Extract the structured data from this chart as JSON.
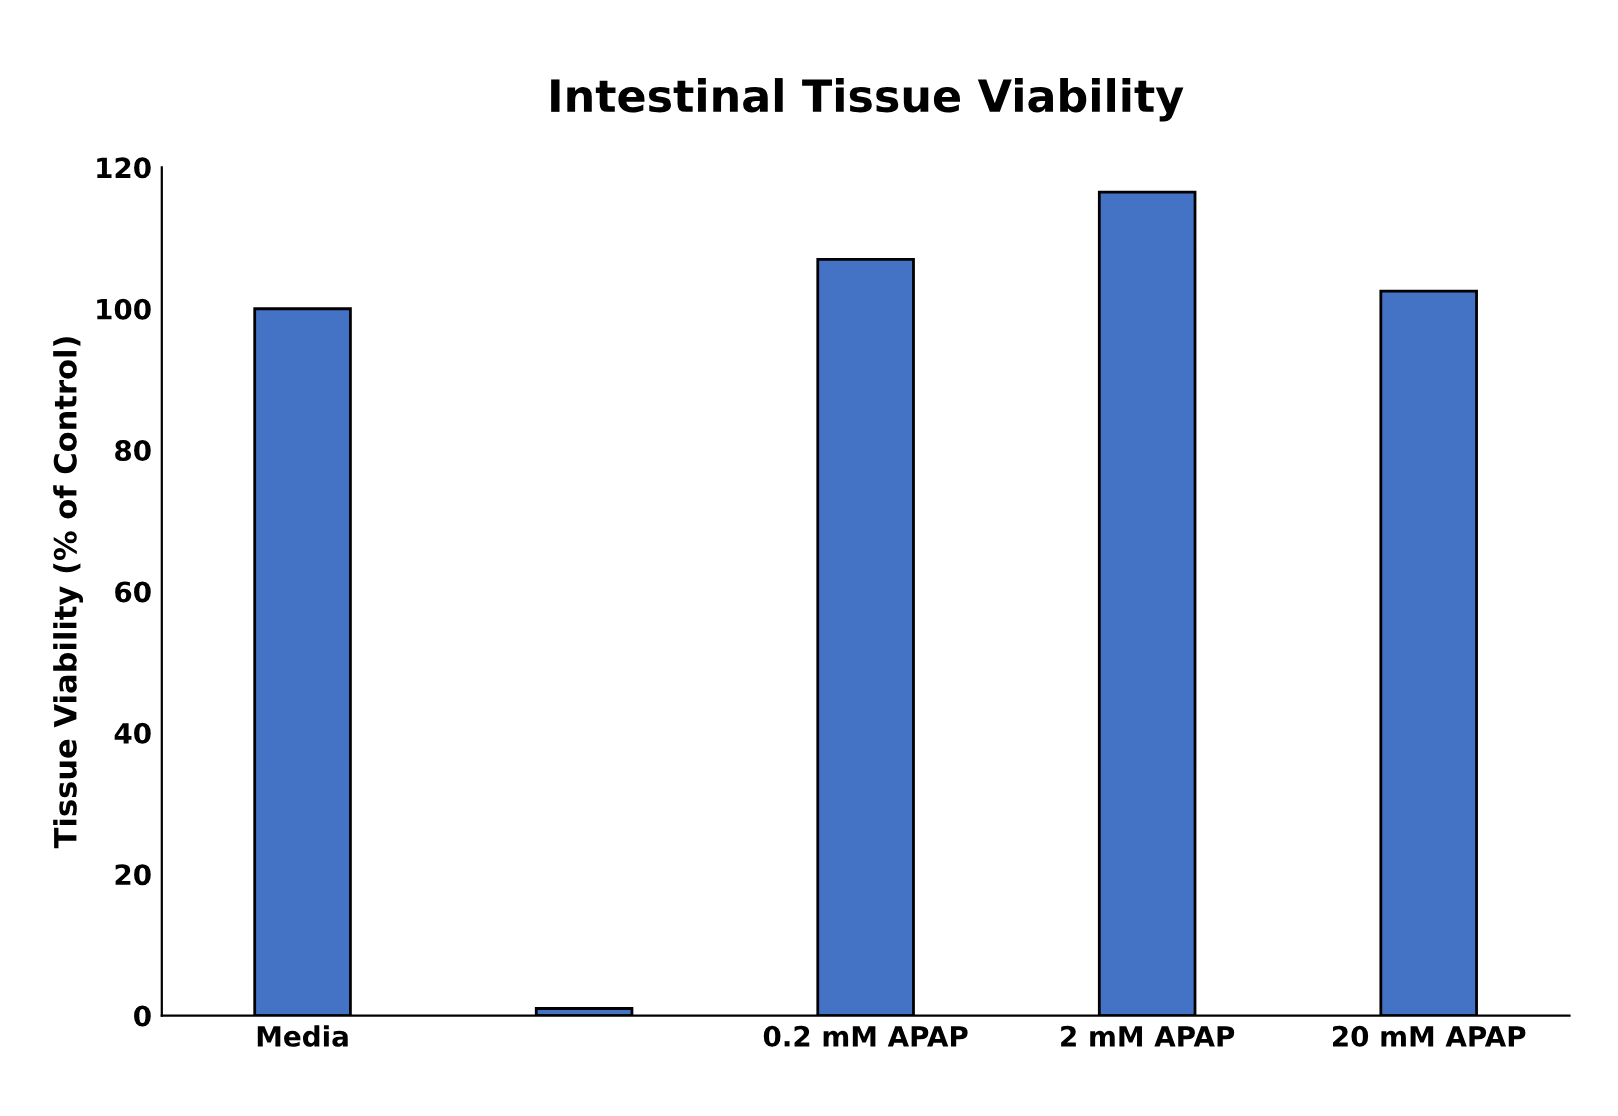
{
  "chart_data": {
    "type": "bar",
    "title": "Intestinal Tissue Viability",
    "ylabel": "Tissue Viability (% of Control)",
    "categories": [
      "Media",
      null,
      "0.2 mM APAP",
      "2 mM APAP",
      "20 mM APAP"
    ],
    "values": [
      100,
      1,
      107,
      116.5,
      102.5
    ],
    "color": "#4472c4",
    "ylim": [
      0,
      120
    ],
    "yticks": [
      0,
      20,
      40,
      60,
      80,
      100,
      120
    ],
    "grid": false
  }
}
